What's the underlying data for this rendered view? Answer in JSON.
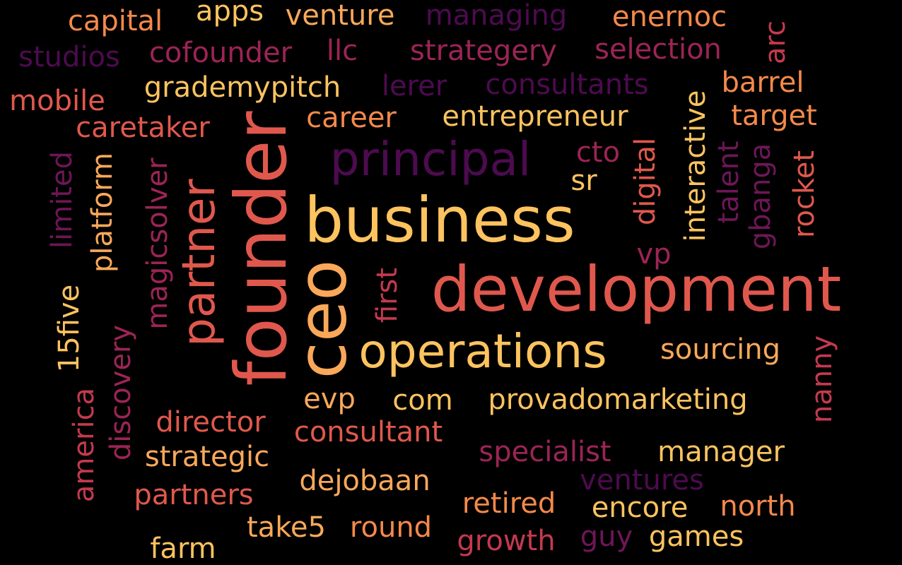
{
  "background": "#000000",
  "palette": {
    "dark_purple": "#4d0b4f",
    "purple": "#6e1657",
    "magenta": "#9c2456",
    "crimson": "#c33a4e",
    "coral": "#e0584d",
    "orange": "#f4894a",
    "light_orange": "#f9a85a",
    "yellow": "#fcc35f"
  },
  "words": [
    {
      "text": "business",
      "color": "#fcc35f",
      "weight": 10
    },
    {
      "text": "development",
      "color": "#e0584d",
      "weight": 10
    },
    {
      "text": "founder",
      "color": "#e0584d",
      "weight": 10
    },
    {
      "text": "ceo",
      "color": "#f9a85a",
      "weight": 10
    },
    {
      "text": "operations",
      "color": "#fcc35f",
      "weight": 8
    },
    {
      "text": "principal",
      "color": "#4d0b4f",
      "weight": 8
    },
    {
      "text": "partner",
      "color": "#e0584d",
      "weight": 8
    },
    {
      "text": "capital",
      "color": "#f4894a",
      "weight": 4
    },
    {
      "text": "apps",
      "color": "#fcc35f",
      "weight": 4
    },
    {
      "text": "venture",
      "color": "#f9a85a",
      "weight": 4
    },
    {
      "text": "managing",
      "color": "#4d0b4f",
      "weight": 4
    },
    {
      "text": "enernoc",
      "color": "#f4894a",
      "weight": 4
    },
    {
      "text": "studios",
      "color": "#4d0b4f",
      "weight": 4
    },
    {
      "text": "cofounder",
      "color": "#9c2456",
      "weight": 4
    },
    {
      "text": "llc",
      "color": "#9c2456",
      "weight": 4
    },
    {
      "text": "strategery",
      "color": "#9c2456",
      "weight": 4
    },
    {
      "text": "selection",
      "color": "#9c2456",
      "weight": 4
    },
    {
      "text": "arc",
      "color": "#c33a4e",
      "weight": 4
    },
    {
      "text": "mobile",
      "color": "#e0584d",
      "weight": 4
    },
    {
      "text": "grademypitch",
      "color": "#fcc35f",
      "weight": 4
    },
    {
      "text": "lerer",
      "color": "#4d0b4f",
      "weight": 4
    },
    {
      "text": "consultants",
      "color": "#4d0b4f",
      "weight": 4
    },
    {
      "text": "barrel",
      "color": "#f4894a",
      "weight": 4
    },
    {
      "text": "caretaker",
      "color": "#e0584d",
      "weight": 4
    },
    {
      "text": "career",
      "color": "#f4894a",
      "weight": 4
    },
    {
      "text": "entrepreneur",
      "color": "#fcc35f",
      "weight": 4
    },
    {
      "text": "interactive",
      "color": "#fcc35f",
      "weight": 4
    },
    {
      "text": "target",
      "color": "#f4894a",
      "weight": 4
    },
    {
      "text": "cto",
      "color": "#9c2456",
      "weight": 4
    },
    {
      "text": "sr",
      "color": "#fcc35f",
      "weight": 4
    },
    {
      "text": "limited",
      "color": "#6e1657",
      "weight": 4
    },
    {
      "text": "platform",
      "color": "#f9a85a",
      "weight": 4
    },
    {
      "text": "magicsolver",
      "color": "#9c2456",
      "weight": 4
    },
    {
      "text": "digital",
      "color": "#e0584d",
      "weight": 4
    },
    {
      "text": "talent",
      "color": "#6e1657",
      "weight": 4
    },
    {
      "text": "gbanga",
      "color": "#6e1657",
      "weight": 4
    },
    {
      "text": "rocket",
      "color": "#e0584d",
      "weight": 4
    },
    {
      "text": "vp",
      "color": "#9c2456",
      "weight": 4
    },
    {
      "text": "first",
      "color": "#c33a4e",
      "weight": 4
    },
    {
      "text": "15five",
      "color": "#fcc35f",
      "weight": 4
    },
    {
      "text": "discovery",
      "color": "#9c2456",
      "weight": 4
    },
    {
      "text": "sourcing",
      "color": "#f9a85a",
      "weight": 4
    },
    {
      "text": "nanny",
      "color": "#c33a4e",
      "weight": 4
    },
    {
      "text": "america",
      "color": "#c33a4e",
      "weight": 4
    },
    {
      "text": "evp",
      "color": "#f9a85a",
      "weight": 4
    },
    {
      "text": "com",
      "color": "#fcc35f",
      "weight": 4
    },
    {
      "text": "provadomarketing",
      "color": "#fcc35f",
      "weight": 4
    },
    {
      "text": "director",
      "color": "#e0584d",
      "weight": 4
    },
    {
      "text": "consultant",
      "color": "#e0584d",
      "weight": 4
    },
    {
      "text": "strategic",
      "color": "#f9a85a",
      "weight": 4
    },
    {
      "text": "specialist",
      "color": "#9c2456",
      "weight": 4
    },
    {
      "text": "manager",
      "color": "#fcc35f",
      "weight": 4
    },
    {
      "text": "dejobaan",
      "color": "#f9a85a",
      "weight": 4
    },
    {
      "text": "ventures",
      "color": "#4d0b4f",
      "weight": 4
    },
    {
      "text": "partners",
      "color": "#e0584d",
      "weight": 4
    },
    {
      "text": "retired",
      "color": "#f4894a",
      "weight": 4
    },
    {
      "text": "encore",
      "color": "#fcc35f",
      "weight": 4
    },
    {
      "text": "north",
      "color": "#f4894a",
      "weight": 4
    },
    {
      "text": "take5",
      "color": "#f9a85a",
      "weight": 4
    },
    {
      "text": "round",
      "color": "#f4894a",
      "weight": 4
    },
    {
      "text": "growth",
      "color": "#c33a4e",
      "weight": 4
    },
    {
      "text": "guy",
      "color": "#6e1657",
      "weight": 4
    },
    {
      "text": "games",
      "color": "#fcc35f",
      "weight": 4
    },
    {
      "text": "farm",
      "color": "#fcc35f",
      "weight": 4
    }
  ]
}
